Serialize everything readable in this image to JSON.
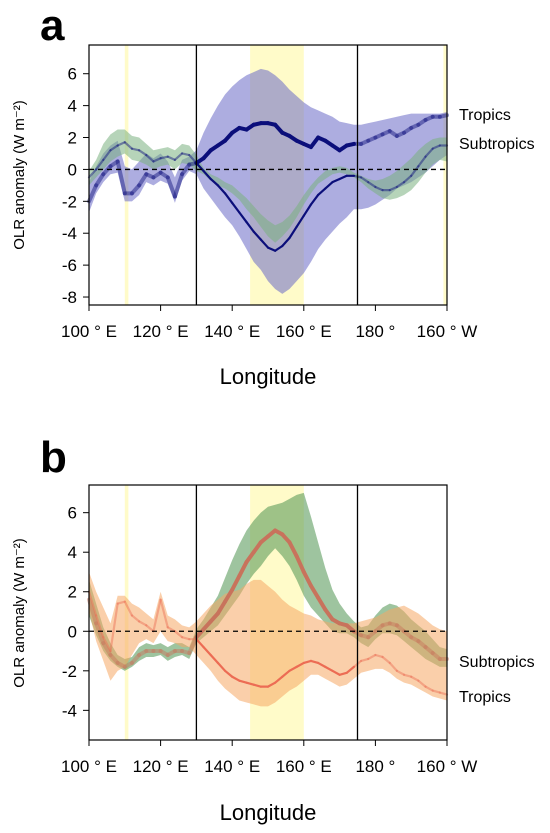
{
  "chart_data": [
    {
      "panel": "a",
      "type": "line",
      "ylabel": "OLR anomaly (W m⁻²)",
      "xlabel": "Longitude",
      "xticks": [
        {
          "lon": 100,
          "label": "100 ° E"
        },
        {
          "lon": 120,
          "label": "120 ° E"
        },
        {
          "lon": 140,
          "label": "140 ° E"
        },
        {
          "lon": 160,
          "label": "160 ° E"
        },
        {
          "lon": 180,
          "label": "180 °"
        },
        {
          "lon": 200,
          "label": "160 ° W"
        }
      ],
      "yticks": [
        -8,
        -6,
        -4,
        -2,
        0,
        2,
        4,
        6
      ],
      "xlim": [
        100,
        200
      ],
      "ylim": [
        -8.5,
        7.8
      ],
      "vlines": [
        130,
        175
      ],
      "highlights": [
        [
          110,
          111
        ],
        [
          145,
          160
        ],
        [
          199,
          200
        ]
      ],
      "series": [
        {
          "name": "Tropics",
          "color": "#0b0e7a",
          "fill": "#6a6ac6",
          "x": [
            100,
            102,
            104,
            106,
            108,
            110,
            112,
            114,
            116,
            118,
            120,
            122,
            124,
            126,
            128,
            130,
            132,
            134,
            136,
            138,
            140,
            142,
            144,
            146,
            148,
            150,
            152,
            154,
            156,
            158,
            160,
            162,
            164,
            166,
            168,
            170,
            172,
            174,
            176,
            178,
            180,
            182,
            184,
            186,
            188,
            190,
            192,
            194,
            196,
            198,
            200
          ],
          "y": [
            -2.0,
            -1.0,
            -0.3,
            0.2,
            0.5,
            -1.5,
            -1.5,
            -1.0,
            -0.3,
            -0.5,
            -0.2,
            -0.5,
            -1.7,
            -0.3,
            0.3,
            0.4,
            0.7,
            1.2,
            1.5,
            1.8,
            2.3,
            2.6,
            2.5,
            2.8,
            2.9,
            2.9,
            2.8,
            2.3,
            2.1,
            1.8,
            1.6,
            1.4,
            2.0,
            1.8,
            1.5,
            1.2,
            1.5,
            1.6,
            1.6,
            1.8,
            2.0,
            2.2,
            2.4,
            2.1,
            2.3,
            2.6,
            2.8,
            3.1,
            3.3,
            3.3,
            3.4
          ],
          "lower": [
            -2.7,
            -1.5,
            -0.8,
            -0.3,
            -0.2,
            -2.0,
            -2.0,
            -1.6,
            -0.8,
            -1.0,
            -0.7,
            -0.9,
            -2.1,
            -0.7,
            -0.1,
            -0.3,
            -1.2,
            -1.8,
            -2.4,
            -3.0,
            -3.5,
            -4.2,
            -5.0,
            -5.8,
            -6.3,
            -7.0,
            -7.5,
            -7.8,
            -7.5,
            -7.0,
            -6.5,
            -5.8,
            -5.0,
            -4.4,
            -3.9,
            -3.4,
            -3.0,
            -2.5,
            -2.5,
            -2.4,
            -2.2,
            -1.9,
            -1.6,
            -1.2,
            -1.0,
            -0.8,
            -0.5,
            -0.2,
            0.2,
            0.6,
            0.9
          ],
          "upper": [
            -0.8,
            0.2,
            1.0,
            1.5,
            1.8,
            0.2,
            0.0,
            0.5,
            1.0,
            0.7,
            1.0,
            0.5,
            -0.5,
            0.6,
            0.8,
            1.2,
            2.3,
            3.2,
            4.0,
            4.7,
            5.2,
            5.6,
            5.9,
            6.1,
            6.3,
            6.2,
            5.9,
            5.5,
            5.0,
            4.6,
            4.2,
            3.9,
            3.7,
            3.5,
            3.3,
            3.0,
            2.9,
            2.8,
            2.8,
            2.9,
            3.0,
            3.1,
            3.2,
            3.3,
            3.4,
            3.5,
            3.5,
            3.5,
            3.5,
            3.5,
            3.6
          ]
        },
        {
          "name": "Subtropics",
          "color": "#0b0e7a",
          "fill": "#7ab07f",
          "x": [
            100,
            102,
            104,
            106,
            108,
            110,
            112,
            114,
            116,
            118,
            120,
            122,
            124,
            126,
            128,
            130,
            132,
            134,
            136,
            138,
            140,
            142,
            144,
            146,
            148,
            150,
            152,
            154,
            156,
            158,
            160,
            162,
            164,
            166,
            168,
            170,
            172,
            174,
            176,
            178,
            180,
            182,
            184,
            186,
            188,
            190,
            192,
            194,
            196,
            198,
            200
          ],
          "y": [
            -0.5,
            0.0,
            0.6,
            1.2,
            1.5,
            1.7,
            1.3,
            1.2,
            0.9,
            0.5,
            0.7,
            0.8,
            0.6,
            1.0,
            0.9,
            0.4,
            -0.1,
            -0.6,
            -1.0,
            -1.5,
            -2.1,
            -2.7,
            -3.3,
            -3.9,
            -4.4,
            -4.9,
            -5.1,
            -4.8,
            -4.3,
            -3.6,
            -2.9,
            -2.2,
            -1.6,
            -1.2,
            -0.8,
            -0.6,
            -0.4,
            -0.4,
            -0.5,
            -0.8,
            -1.1,
            -1.3,
            -1.3,
            -1.1,
            -0.8,
            -0.4,
            0.2,
            0.8,
            1.3,
            1.5,
            1.5
          ],
          "lower": [
            -1.0,
            -0.5,
            0.0,
            0.5,
            0.8,
            1.0,
            0.6,
            0.5,
            0.3,
            0.0,
            0.2,
            0.3,
            0.0,
            0.4,
            0.3,
            -0.1,
            -0.3,
            -0.7,
            -1.0,
            -1.2,
            -1.5,
            -1.9,
            -2.5,
            -3.0,
            -3.6,
            -4.2,
            -4.6,
            -4.2,
            -3.7,
            -3.0,
            -2.2,
            -1.5,
            -0.9,
            -0.6,
            -0.3,
            -0.2,
            -0.3,
            -0.5,
            -0.8,
            -1.2,
            -1.5,
            -1.8,
            -1.9,
            -1.8,
            -1.6,
            -1.3,
            -0.8,
            -0.2,
            0.3,
            0.6,
            0.5
          ],
          "upper": [
            -0.1,
            0.6,
            1.6,
            2.2,
            2.5,
            2.5,
            2.1,
            2.0,
            1.6,
            1.2,
            1.3,
            1.4,
            1.2,
            1.6,
            1.5,
            0.9,
            0.1,
            -0.3,
            -0.5,
            -0.8,
            -1.0,
            -1.4,
            -1.8,
            -2.3,
            -2.8,
            -3.2,
            -3.5,
            -3.3,
            -2.9,
            -2.3,
            -1.6,
            -1.0,
            -0.5,
            -0.1,
            0.1,
            0.2,
            0.1,
            -0.2,
            -0.4,
            -0.6,
            -0.7,
            -0.6,
            -0.4,
            -0.1,
            0.3,
            0.7,
            1.2,
            1.6,
            1.9,
            2.0,
            2.0
          ]
        }
      ]
    },
    {
      "panel": "b",
      "type": "line",
      "ylabel": "OLR anomaly (W m⁻²)",
      "xlabel": "Longitude",
      "xticks": [
        {
          "lon": 100,
          "label": "100 ° E"
        },
        {
          "lon": 120,
          "label": "120 ° E"
        },
        {
          "lon": 140,
          "label": "140 ° E"
        },
        {
          "lon": 160,
          "label": "160 ° E"
        },
        {
          "lon": 180,
          "label": "180 °"
        },
        {
          "lon": 200,
          "label": "160 ° W"
        }
      ],
      "yticks": [
        -4,
        -2,
        0,
        2,
        4,
        6
      ],
      "xlim": [
        100,
        200
      ],
      "ylim": [
        -5.5,
        7.4
      ],
      "vlines": [
        130,
        175
      ],
      "highlights": [
        [
          110,
          111
        ],
        [
          145,
          160
        ]
      ],
      "series": [
        {
          "name": "Subtropics",
          "color": "#c8735c",
          "fill": "#4e9450",
          "x": [
            100,
            102,
            104,
            106,
            108,
            110,
            112,
            114,
            116,
            118,
            120,
            122,
            124,
            126,
            128,
            130,
            132,
            134,
            136,
            138,
            140,
            142,
            144,
            146,
            148,
            150,
            152,
            154,
            156,
            158,
            160,
            162,
            164,
            166,
            168,
            170,
            172,
            174,
            176,
            178,
            180,
            182,
            184,
            186,
            188,
            190,
            192,
            194,
            196,
            198,
            200
          ],
          "y": [
            1.6,
            0.4,
            -0.6,
            -1.2,
            -1.6,
            -1.8,
            -1.6,
            -1.2,
            -1.0,
            -1.0,
            -1.0,
            -1.2,
            -1.0,
            -1.0,
            -1.1,
            -0.3,
            0.1,
            0.5,
            0.9,
            1.5,
            2.1,
            2.8,
            3.5,
            4.0,
            4.5,
            4.8,
            5.1,
            4.9,
            4.5,
            3.8,
            3.0,
            2.3,
            1.7,
            1.1,
            0.6,
            0.4,
            0.3,
            0.0,
            -0.2,
            -0.3,
            0.0,
            0.3,
            0.4,
            0.3,
            0.0,
            -0.3,
            -0.5,
            -0.8,
            -1.1,
            -1.4,
            -1.4
          ],
          "lower": [
            0.8,
            -0.2,
            -1.0,
            -1.5,
            -1.8,
            -2.0,
            -1.8,
            -1.5,
            -1.3,
            -1.3,
            -1.2,
            -1.5,
            -1.3,
            -1.2,
            -1.4,
            -0.6,
            -0.3,
            0.0,
            0.3,
            0.8,
            1.3,
            1.8,
            2.4,
            2.9,
            3.3,
            3.8,
            4.2,
            3.8,
            3.3,
            2.6,
            1.8,
            1.2,
            0.8,
            0.4,
            0.0,
            -0.1,
            -0.1,
            -0.3,
            -0.6,
            -0.8,
            -0.4,
            -0.1,
            -0.1,
            -0.2,
            -0.5,
            -0.8,
            -1.1,
            -1.4,
            -1.6,
            -1.8,
            -1.8
          ],
          "upper": [
            2.6,
            1.4,
            0.2,
            -0.6,
            -1.2,
            -1.4,
            -1.3,
            -0.8,
            -0.6,
            -0.7,
            -0.6,
            -0.8,
            -0.6,
            -0.6,
            -0.8,
            0.1,
            0.6,
            1.2,
            1.8,
            2.7,
            3.6,
            4.4,
            5.1,
            5.6,
            6.0,
            6.3,
            6.4,
            6.5,
            6.7,
            6.9,
            7.0,
            5.8,
            4.5,
            3.2,
            2.1,
            1.4,
            0.9,
            0.5,
            0.2,
            0.3,
            0.8,
            1.2,
            1.4,
            1.3,
            1.0,
            0.6,
            0.3,
            0.0,
            -0.4,
            -0.8,
            -0.9
          ]
        },
        {
          "name": "Tropics",
          "color": "#ec6c54",
          "fill": "#f5a864",
          "x": [
            100,
            102,
            104,
            106,
            108,
            110,
            112,
            114,
            116,
            118,
            120,
            122,
            124,
            126,
            128,
            130,
            132,
            134,
            136,
            138,
            140,
            142,
            144,
            146,
            148,
            150,
            152,
            154,
            156,
            158,
            160,
            162,
            164,
            166,
            168,
            170,
            172,
            174,
            176,
            178,
            180,
            182,
            184,
            186,
            188,
            190,
            192,
            194,
            196,
            198,
            200
          ],
          "y": [
            2.0,
            0.8,
            -0.3,
            -1.0,
            1.4,
            1.5,
            0.8,
            0.5,
            0.3,
            0.0,
            1.6,
            0.2,
            0.0,
            -0.3,
            -0.4,
            -0.4,
            -0.8,
            -1.2,
            -1.6,
            -2.0,
            -2.3,
            -2.5,
            -2.6,
            -2.7,
            -2.8,
            -2.8,
            -2.6,
            -2.3,
            -2.0,
            -1.8,
            -1.6,
            -1.5,
            -1.6,
            -1.8,
            -2.0,
            -2.2,
            -2.1,
            -1.8,
            -1.5,
            -1.4,
            -1.2,
            -1.3,
            -1.6,
            -2.0,
            -2.2,
            -2.3,
            -2.5,
            -2.8,
            -3.0,
            -3.1,
            -3.2
          ],
          "lower": [
            1.0,
            -0.5,
            -1.5,
            -2.5,
            -2.0,
            -1.8,
            -1.2,
            -0.6,
            -0.4,
            -0.6,
            0.0,
            -0.5,
            -0.6,
            -0.8,
            -0.8,
            -1.2,
            -1.6,
            -2.0,
            -2.5,
            -2.9,
            -3.2,
            -3.5,
            -3.6,
            -3.7,
            -3.8,
            -3.8,
            -3.6,
            -3.3,
            -3.0,
            -2.8,
            -2.5,
            -2.2,
            -2.2,
            -2.4,
            -2.6,
            -2.8,
            -2.7,
            -2.4,
            -2.1,
            -2.0,
            -1.9,
            -1.9,
            -2.1,
            -2.4,
            -2.6,
            -2.7,
            -2.9,
            -3.1,
            -3.3,
            -3.4,
            -3.5
          ],
          "upper": [
            3.0,
            2.0,
            1.2,
            0.4,
            1.8,
            1.8,
            1.4,
            1.2,
            0.9,
            0.6,
            2.0,
            0.8,
            0.6,
            0.3,
            0.2,
            0.5,
            0.9,
            1.3,
            1.6,
            1.9,
            2.0,
            2.1,
            2.4,
            2.6,
            2.6,
            2.3,
            2.0,
            1.6,
            1.3,
            1.1,
            0.9,
            0.8,
            0.6,
            0.5,
            0.4,
            0.4,
            0.4,
            0.4,
            0.5,
            0.6,
            0.7,
            0.9,
            1.1,
            1.2,
            1.3,
            1.1,
            0.9,
            0.6,
            0.3,
            0.1,
            0.0
          ]
        }
      ]
    }
  ],
  "panels": {
    "a": {
      "label": "a",
      "xlabel": "Longitude",
      "ylabel": "OLR anomaly (W m⁻²)",
      "series_labels": [
        "Tropics",
        "Subtropics"
      ]
    },
    "b": {
      "label": "b",
      "xlabel": "Longitude",
      "ylabel": "OLR anomaly (W m⁻²)",
      "series_labels": [
        "Subtropics",
        "Tropics"
      ]
    }
  }
}
